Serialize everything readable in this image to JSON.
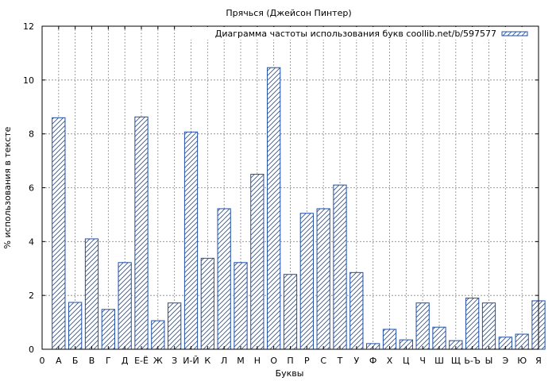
{
  "chart_data": {
    "type": "bar",
    "title": "Прячься (Джейсон Пинтер)",
    "xlabel": "Буквы",
    "ylabel": "% использования в тексте",
    "legend": "Диаграмма частоты использования букв coollib.net/b/597577",
    "legend_position": "top-right",
    "grid": true,
    "ylim": [
      0,
      12
    ],
    "yticks": [
      "0",
      "2",
      "4",
      "6",
      "8",
      "10",
      "12"
    ],
    "x_origin_label": "0",
    "categories": [
      "А",
      "Б",
      "В",
      "Г",
      "Д",
      "Е-Ё",
      "Ж",
      "З",
      "И-Й",
      "К",
      "Л",
      "М",
      "Н",
      "О",
      "П",
      "Р",
      "С",
      "Т",
      "У",
      "Ф",
      "Х",
      "Ц",
      "Ч",
      "Ш",
      "Щ",
      "Ь-Ъ",
      "Ы",
      "Э",
      "Ю",
      "Я"
    ],
    "values": [
      8.6,
      1.74,
      4.1,
      1.48,
      3.22,
      8.63,
      1.06,
      1.72,
      8.07,
      3.38,
      5.22,
      3.22,
      6.5,
      10.46,
      2.78,
      5.05,
      5.22,
      6.1,
      2.85,
      0.21,
      0.74,
      0.35,
      1.72,
      0.82,
      0.32,
      1.9,
      1.72,
      0.45,
      0.56,
      1.8
    ],
    "bar_color": "#1f4fa8"
  }
}
